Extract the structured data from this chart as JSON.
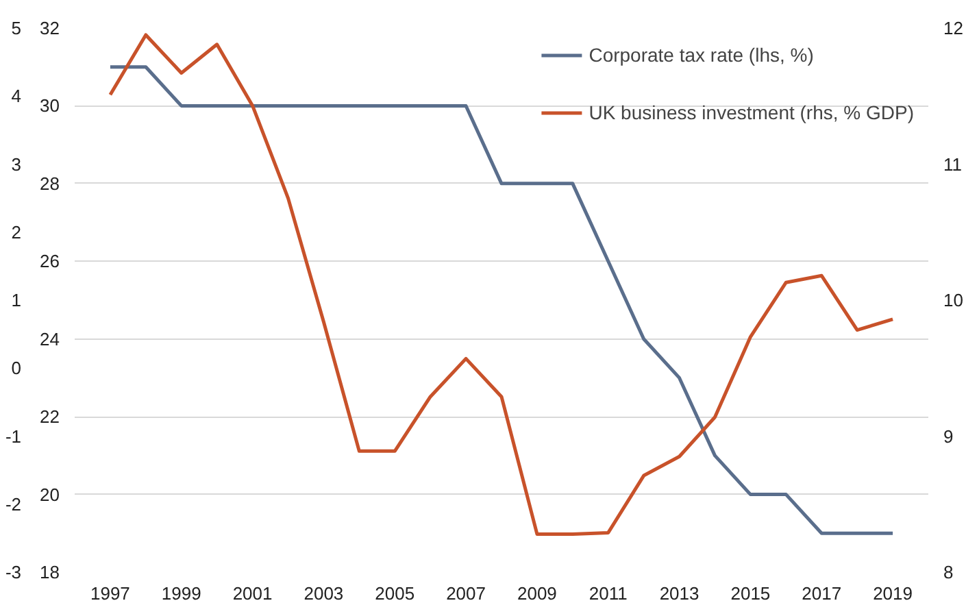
{
  "chart_data": {
    "type": "line",
    "x": [
      1997,
      1998,
      1999,
      2000,
      2001,
      2002,
      2003,
      2004,
      2005,
      2006,
      2007,
      2008,
      2009,
      2010,
      2011,
      2012,
      2013,
      2014,
      2015,
      2016,
      2017,
      2018,
      2019
    ],
    "series": [
      {
        "name": "Corporate tax rate (lhs, %)",
        "color": "#5a6e8c",
        "values": [
          31,
          31,
          30,
          30,
          30,
          30,
          30,
          30,
          30,
          30,
          30,
          28,
          28,
          28,
          26,
          24,
          23,
          21,
          20,
          20,
          19,
          19,
          19
        ]
      },
      {
        "name": "UK business investment (rhs, % GDP)",
        "color": "#c8522a",
        "axis": "y2",
        "values": [
          11.51,
          11.95,
          11.67,
          11.88,
          11.43,
          10.75,
          9.84,
          8.89,
          8.89,
          9.29,
          9.57,
          9.29,
          8.28,
          8.28,
          8.29,
          8.71,
          8.85,
          9.14,
          9.73,
          10.13,
          10.18,
          9.78,
          9.86
        ]
      }
    ],
    "xlim": [
      1996,
      2020
    ],
    "xticks": [
      1997,
      1999,
      2001,
      2003,
      2005,
      2007,
      2009,
      2011,
      2013,
      2015,
      2017,
      2019
    ],
    "ylim": [
      18,
      32
    ],
    "yticks": [
      18,
      20,
      22,
      24,
      26,
      28,
      30,
      32
    ],
    "y2lim": [
      8,
      12
    ],
    "y2ticks": [
      8,
      9,
      10,
      11,
      12
    ],
    "y3lim": [
      -3,
      5
    ],
    "y3ticks": [
      -3,
      -2,
      -1,
      0,
      1,
      2,
      3,
      4,
      5
    ],
    "grid": "y",
    "legend": "top right",
    "marker": "none",
    "line_style": "solid"
  }
}
